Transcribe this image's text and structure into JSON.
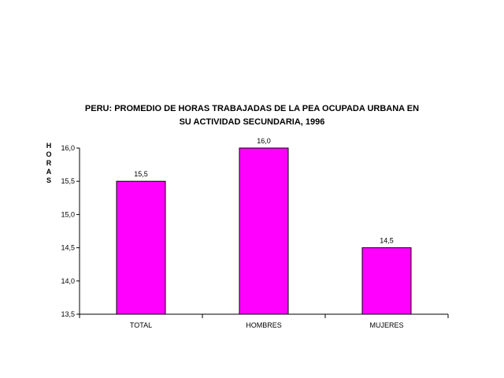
{
  "chart_data": {
    "type": "bar",
    "title_lines": [
      "PERU: PROMEDIO DE HORAS TRABAJADAS DE LA PEA OCUPADA URBANA EN",
      "SU ACTIVIDAD SECUNDARIA, 1996"
    ],
    "ylabel": "HORAS",
    "xlabel": "",
    "categories": [
      "TOTAL",
      "HOMBRES",
      "MUJERES"
    ],
    "values": [
      15.5,
      16.0,
      14.5
    ],
    "value_labels": [
      "15,5",
      "16,0",
      "14,5"
    ],
    "ylim": [
      13.5,
      16.0
    ],
    "yticks": [
      13.5,
      14.0,
      14.5,
      15.0,
      15.5,
      16.0
    ],
    "ytick_labels": [
      "13,5",
      "14,0",
      "14,5",
      "15,0",
      "15,5",
      "16,0"
    ],
    "grid": false,
    "legend": "none",
    "bar_color": "#ff00ff"
  }
}
